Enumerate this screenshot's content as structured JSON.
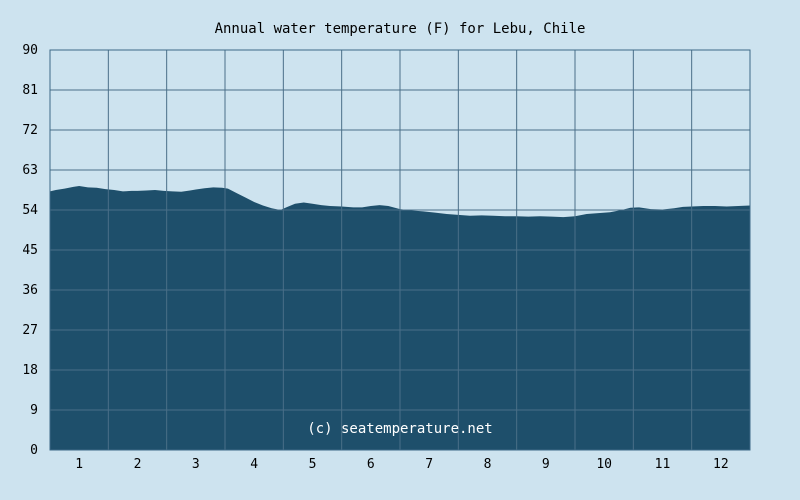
{
  "chart_data": {
    "type": "area",
    "title": "Annual water temperature (F) for Lebu, Chile",
    "xlabel": "",
    "ylabel": "",
    "ylim": [
      0,
      90
    ],
    "xlim": [
      0.5,
      12.5
    ],
    "y_ticks": [
      "0",
      "9",
      "18",
      "27",
      "36",
      "45",
      "54",
      "63",
      "72",
      "81",
      "90"
    ],
    "x_ticks": [
      "1",
      "2",
      "3",
      "4",
      "5",
      "6",
      "7",
      "8",
      "9",
      "10",
      "11",
      "12"
    ],
    "grid": true,
    "watermark": "(c) seatemperature.net",
    "colors": {
      "background": "#cde3ef",
      "fill": "#1e4f6b",
      "grid": "#4a6f88",
      "frame": "#3d6a87"
    },
    "series": [
      {
        "x": [
          0.5,
          0.6,
          0.75,
          0.9,
          1.0,
          1.15,
          1.3,
          1.45,
          1.6,
          1.75,
          1.9,
          2.0,
          2.15,
          2.3,
          2.45,
          2.6,
          2.75,
          2.9,
          3.0,
          3.15,
          3.3,
          3.45,
          3.55,
          3.7,
          3.85,
          4.0,
          4.15,
          4.3,
          4.45,
          4.55,
          4.7,
          4.85,
          5.0,
          5.15,
          5.3,
          5.5,
          5.7,
          5.85,
          6.0,
          6.15,
          6.3,
          6.5,
          6.7,
          6.9,
          7.1,
          7.3,
          7.5,
          7.7,
          7.9,
          8.1,
          8.3,
          8.5,
          8.7,
          8.9,
          9.1,
          9.3,
          9.5,
          9.7,
          9.9,
          10.1,
          10.3,
          10.45,
          10.6,
          10.8,
          11.0,
          11.2,
          11.35,
          11.5,
          11.7,
          11.9,
          12.1,
          12.3,
          12.5
        ],
        "values": [
          58.2,
          58.5,
          58.8,
          59.2,
          59.4,
          59.1,
          59.0,
          58.7,
          58.5,
          58.2,
          58.3,
          58.3,
          58.4,
          58.5,
          58.3,
          58.2,
          58.1,
          58.4,
          58.6,
          58.9,
          59.1,
          59.0,
          58.8,
          57.8,
          56.8,
          55.8,
          55.0,
          54.4,
          54.0,
          54.6,
          55.4,
          55.7,
          55.4,
          55.1,
          54.9,
          54.8,
          54.6,
          54.6,
          54.9,
          55.1,
          54.9,
          54.2,
          53.9,
          53.7,
          53.4,
          53.1,
          52.9,
          52.7,
          52.8,
          52.7,
          52.6,
          52.6,
          52.5,
          52.6,
          52.5,
          52.4,
          52.6,
          53.1,
          53.3,
          53.5,
          54.0,
          54.5,
          54.6,
          54.2,
          54.1,
          54.4,
          54.7,
          54.8,
          54.9,
          54.9,
          54.8,
          54.9,
          55.0
        ]
      }
    ]
  }
}
